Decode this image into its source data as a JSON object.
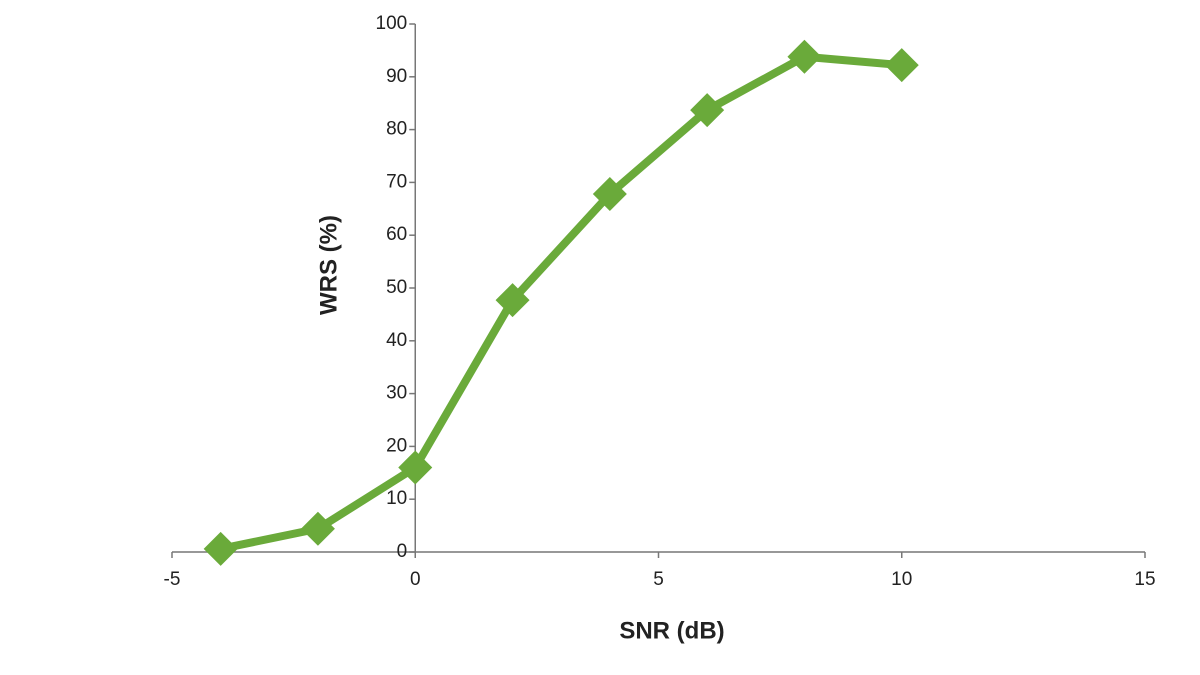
{
  "chart_data": {
    "type": "line",
    "x_label": "SNR (dB)",
    "y_label": "WRS (%)",
    "series": [
      {
        "color": "#6aaa3a",
        "x": [
          -4,
          -2,
          0,
          2,
          4,
          6,
          8,
          10
        ],
        "values": [
          0.6,
          4.4,
          16,
          47.7,
          67.8,
          83.7,
          93.8,
          92.2
        ]
      }
    ],
    "xlim": [
      -5,
      15
    ],
    "xticks": [
      -5,
      0,
      5,
      10,
      15
    ],
    "ylim": [
      0,
      100
    ],
    "yticks": [
      0,
      10,
      20,
      30,
      40,
      50,
      60,
      70,
      80,
      90,
      100
    ]
  }
}
